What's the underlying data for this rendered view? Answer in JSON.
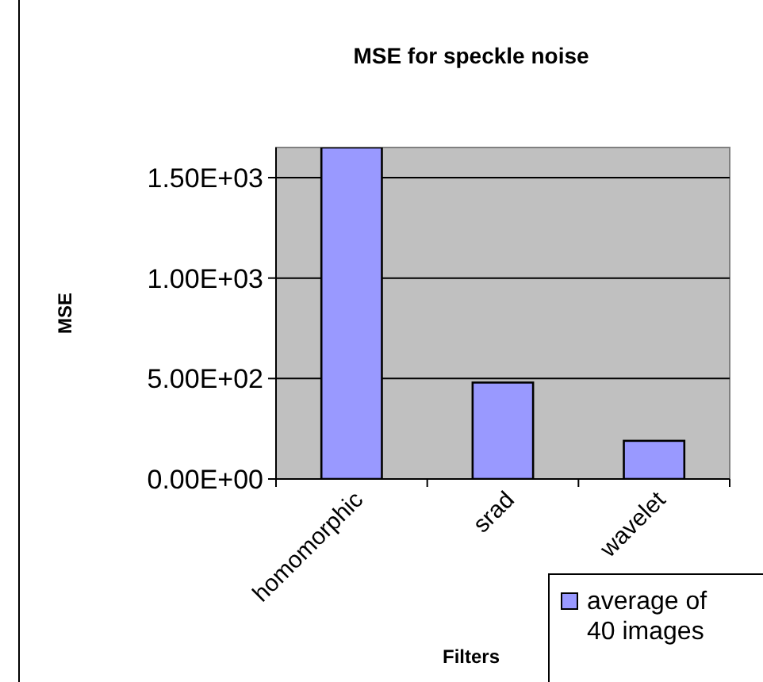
{
  "chart_data": {
    "type": "bar",
    "title": "MSE for speckle noise",
    "xlabel": "Filters",
    "ylabel": "MSE",
    "categories": [
      "homomorphic",
      "srad",
      "wavelet"
    ],
    "series": [
      {
        "name": "average of 40 images",
        "color": "#9999ff",
        "values": [
          1650,
          480,
          190
        ]
      }
    ],
    "ylim": [
      0,
      1650
    ],
    "yticks": [
      {
        "value": 0,
        "label": "0.00E+00"
      },
      {
        "value": 500,
        "label": "5.00E+02"
      },
      {
        "value": 1000,
        "label": "1.00E+03"
      },
      {
        "value": 1500,
        "label": "1.50E+03"
      }
    ],
    "grid": "y",
    "legend": "bottom right"
  }
}
